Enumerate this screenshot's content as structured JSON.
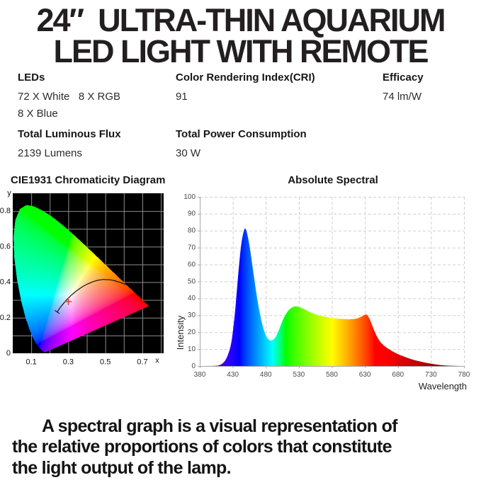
{
  "title": {
    "line1": "24″  ULTRA-THIN AQUARIUM",
    "line2": "LED LIGHT WITH REMOTE"
  },
  "specs": [
    {
      "label": "LEDs",
      "values": [
        "72 X White   8 X RGB",
        "8 X Blue"
      ]
    },
    {
      "label": "Color Rendering Index(CRI)",
      "values": [
        "91"
      ]
    },
    {
      "label": "Efficacy",
      "values": [
        "74 lm/W"
      ]
    },
    {
      "label": "Total Luminous Flux",
      "values": [
        "2139 Lumens"
      ]
    },
    {
      "label": "Total Power Consumption",
      "values": [
        "30 W"
      ]
    }
  ],
  "footer": {
    "lines": [
      "A spectral graph is a visual representation of",
      "the relative proportions of colors that constitute",
      "the light output of the lamp."
    ]
  },
  "chart_data": [
    {
      "type": "heatmap",
      "title": "CIE1931 Chromaticity Diagram",
      "xlabel": "x",
      "ylabel": "y",
      "xlim": [
        0,
        0.815
      ],
      "ylim": [
        0,
        0.9
      ],
      "x_ticks": [
        0.1,
        0.3,
        0.5,
        0.7
      ],
      "y_ticks": [
        0,
        0.2,
        0.4,
        0.6,
        0.8
      ],
      "grid_step": 0.1,
      "bg": "#000000",
      "grid_color": "#8c8c8c",
      "spectral_locus_xy": [
        [
          0.1741,
          0.005
        ],
        [
          0.174,
          0.005
        ],
        [
          0.1738,
          0.0049
        ],
        [
          0.1736,
          0.0049
        ],
        [
          0.1733,
          0.0048
        ],
        [
          0.173,
          0.0048
        ],
        [
          0.1726,
          0.0048
        ],
        [
          0.1721,
          0.0048
        ],
        [
          0.1714,
          0.0051
        ],
        [
          0.1703,
          0.0058
        ],
        [
          0.1689,
          0.0069
        ],
        [
          0.1669,
          0.0086
        ],
        [
          0.1644,
          0.0109
        ],
        [
          0.1607,
          0.0139
        ],
        [
          0.1566,
          0.0177
        ],
        [
          0.151,
          0.0227
        ],
        [
          0.144,
          0.0297
        ],
        [
          0.1355,
          0.0399
        ],
        [
          0.1241,
          0.0578
        ],
        [
          0.1096,
          0.0868
        ],
        [
          0.0913,
          0.1327
        ],
        [
          0.0687,
          0.2007
        ],
        [
          0.0454,
          0.295
        ],
        [
          0.0235,
          0.4127
        ],
        [
          0.0082,
          0.5384
        ],
        [
          0.0039,
          0.6548
        ],
        [
          0.0139,
          0.7502
        ],
        [
          0.0389,
          0.812
        ],
        [
          0.0743,
          0.8338
        ],
        [
          0.1142,
          0.8262
        ],
        [
          0.1547,
          0.8059
        ],
        [
          0.1929,
          0.7816
        ],
        [
          0.2296,
          0.7543
        ],
        [
          0.2658,
          0.7243
        ],
        [
          0.3016,
          0.6923
        ],
        [
          0.3373,
          0.6589
        ],
        [
          0.3731,
          0.6245
        ],
        [
          0.4087,
          0.5896
        ],
        [
          0.4441,
          0.5547
        ],
        [
          0.4788,
          0.5202
        ],
        [
          0.5125,
          0.4866
        ],
        [
          0.5448,
          0.4544
        ],
        [
          0.5752,
          0.4242
        ],
        [
          0.6029,
          0.3965
        ],
        [
          0.627,
          0.3725
        ],
        [
          0.6482,
          0.3514
        ],
        [
          0.6658,
          0.334
        ],
        [
          0.6801,
          0.3197
        ],
        [
          0.6915,
          0.3083
        ],
        [
          0.7006,
          0.2993
        ],
        [
          0.7079,
          0.292
        ],
        [
          0.714,
          0.2859
        ],
        [
          0.719,
          0.2809
        ],
        [
          0.723,
          0.277
        ],
        [
          0.726,
          0.274
        ],
        [
          0.7283,
          0.2717
        ],
        [
          0.73,
          0.27
        ],
        [
          0.732,
          0.268
        ],
        [
          0.7334,
          0.2666
        ],
        [
          0.7344,
          0.2656
        ],
        [
          0.7347,
          0.2653
        ]
      ],
      "planckian_locus_xy": [
        [
          0.24,
          0.232
        ],
        [
          0.2565,
          0.2577
        ],
        [
          0.2807,
          0.2884
        ],
        [
          0.2952,
          0.3048
        ],
        [
          0.3135,
          0.3237
        ],
        [
          0.3324,
          0.341
        ],
        [
          0.3451,
          0.3516
        ],
        [
          0.3608,
          0.3635
        ],
        [
          0.3805,
          0.3768
        ],
        [
          0.4059,
          0.3907
        ],
        [
          0.4369,
          0.4041
        ],
        [
          0.4599,
          0.4106
        ],
        [
          0.4891,
          0.4153
        ],
        [
          0.5267,
          0.4133
        ],
        [
          0.5497,
          0.4082
        ],
        [
          0.5784,
          0.3992
        ],
        [
          0.61,
          0.387
        ],
        [
          0.638,
          0.378
        ]
      ],
      "white_point_marker": {
        "x": 0.3,
        "y": 0.291,
        "color": "#ff2b2b",
        "shape": "cross"
      }
    },
    {
      "type": "area",
      "title": "Absolute Spectral",
      "xlabel": "Wavelength",
      "ylabel": "Intensity",
      "xlim": [
        380,
        780
      ],
      "ylim": [
        0,
        100
      ],
      "x_ticks": [
        380,
        430,
        480,
        530,
        580,
        630,
        680,
        730,
        780
      ],
      "y_ticks": [
        0,
        10,
        20,
        30,
        40,
        50,
        60,
        70,
        80,
        90,
        100
      ],
      "grid": "dashed",
      "fill": "spectral-rainbow-gradient",
      "x": [
        380,
        405,
        410,
        415,
        420,
        425,
        428,
        430,
        433,
        436,
        440,
        443,
        446,
        448,
        450,
        452,
        455,
        458,
        462,
        466,
        470,
        474,
        478,
        482,
        486,
        490,
        494,
        498,
        502,
        506,
        510,
        514,
        518,
        522,
        526,
        530,
        535,
        540,
        546,
        552,
        560,
        568,
        576,
        584,
        592,
        600,
        608,
        614,
        620,
        625,
        629,
        632,
        634,
        637,
        640,
        644,
        648,
        652,
        656,
        660,
        666,
        672,
        680,
        688,
        696,
        704,
        712,
        720,
        728,
        736,
        744,
        752,
        760,
        770,
        780
      ],
      "intensity": [
        0,
        0,
        0.5,
        1.5,
        4,
        9,
        14,
        20,
        30,
        44,
        62,
        73,
        79,
        81.5,
        81,
        78,
        72,
        64,
        53,
        42,
        33,
        25.5,
        20,
        16.5,
        15,
        15.2,
        16.5,
        19.5,
        23.5,
        27.5,
        30.5,
        32.8,
        34.2,
        35.1,
        35.4,
        35,
        34.2,
        33.2,
        32,
        31,
        29.9,
        29.2,
        28.6,
        28.2,
        27.9,
        27.7,
        27.6,
        27.8,
        28.3,
        29.2,
        30.2,
        30.6,
        30,
        28,
        25,
        21,
        17.5,
        14.8,
        13,
        11.7,
        10,
        8.6,
        7,
        5.8,
        4.6,
        3.6,
        2.8,
        2.1,
        1.5,
        1,
        0.6,
        0.3,
        0.15,
        0.05,
        0
      ]
    }
  ]
}
